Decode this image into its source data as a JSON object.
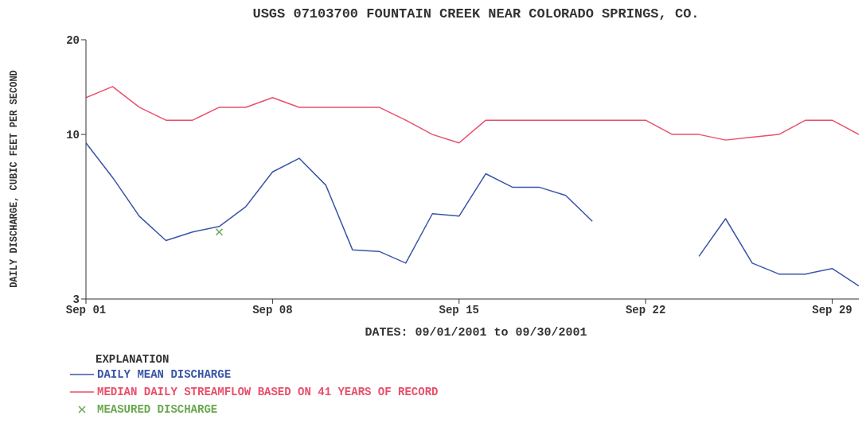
{
  "chart_data": {
    "type": "line",
    "title": "USGS 07103700 FOUNTAIN CREEK NEAR COLORADO SPRINGS, CO.",
    "xlabel": "DATES: 09/01/2001 to 09/30/2001",
    "ylabel": "DAILY DISCHARGE, CUBIC FEET PER SECOND",
    "legend_title": "EXPLANATION",
    "legend": "bottom",
    "log": "y",
    "grid": false,
    "x": [
      "2001-09-01",
      "2001-09-02",
      "2001-09-03",
      "2001-09-04",
      "2001-09-05",
      "2001-09-06",
      "2001-09-07",
      "2001-09-08",
      "2001-09-09",
      "2001-09-10",
      "2001-09-11",
      "2001-09-12",
      "2001-09-13",
      "2001-09-14",
      "2001-09-15",
      "2001-09-16",
      "2001-09-17",
      "2001-09-18",
      "2001-09-19",
      "2001-09-20",
      "2001-09-21",
      "2001-09-22",
      "2001-09-23",
      "2001-09-24",
      "2001-09-25",
      "2001-09-26",
      "2001-09-27",
      "2001-09-28",
      "2001-09-29",
      "2001-09-30"
    ],
    "xlim": [
      "2001-09-01",
      "2001-09-30"
    ],
    "xticks": [
      {
        "value": "2001-09-01",
        "label": "Sep 01"
      },
      {
        "value": "2001-09-08",
        "label": "Sep 08"
      },
      {
        "value": "2001-09-15",
        "label": "Sep 15"
      },
      {
        "value": "2001-09-22",
        "label": "Sep 22"
      },
      {
        "value": "2001-09-29",
        "label": "Sep 29"
      }
    ],
    "ylim": [
      3,
      20
    ],
    "yticks": [
      3,
      10,
      20
    ],
    "series": [
      {
        "name": "DAILY MEAN DISCHARGE",
        "color": "#3a55a8",
        "marker": "none",
        "values": [
          9.4,
          7.3,
          5.5,
          4.6,
          4.9,
          5.1,
          5.9,
          7.6,
          8.4,
          6.9,
          4.3,
          4.25,
          3.9,
          5.6,
          5.5,
          7.5,
          6.8,
          6.8,
          6.4,
          5.3,
          null,
          null,
          null,
          4.1,
          5.4,
          3.9,
          3.6,
          3.6,
          3.75,
          3.3
        ]
      },
      {
        "name": "MEDIAN DAILY STREAMFLOW BASED ON 41 YEARS OF RECORD",
        "color": "#e8506a",
        "marker": "none",
        "values": [
          13.1,
          14.2,
          12.2,
          11.1,
          11.1,
          12.2,
          12.2,
          13.1,
          12.2,
          12.2,
          12.2,
          12.2,
          11.1,
          10,
          9.4,
          11.1,
          11.1,
          11.1,
          11.1,
          11.1,
          11.1,
          11.1,
          10,
          10,
          9.6,
          9.8,
          10,
          11.1,
          11.1,
          10
        ]
      },
      {
        "name": "MEASURED DISCHARGE",
        "type": "scatter",
        "color": "#6aa84f",
        "marker": "cross",
        "x": [
          "2001-09-06"
        ],
        "values": [
          4.9
        ]
      }
    ]
  }
}
